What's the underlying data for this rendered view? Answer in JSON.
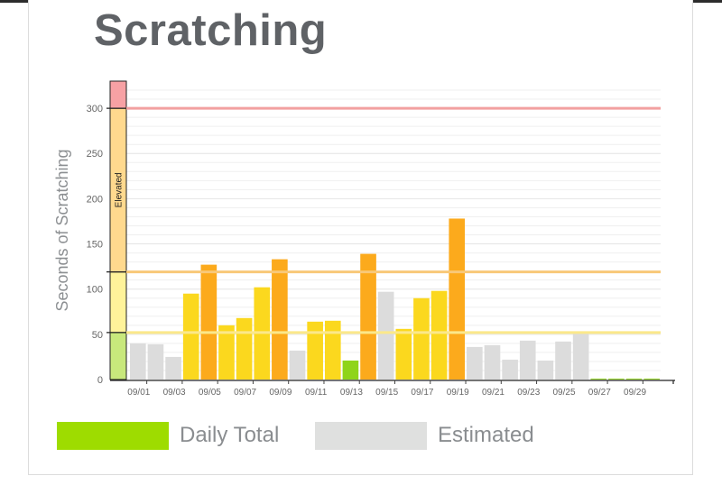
{
  "title": "Scratching",
  "chart_data": {
    "type": "bar",
    "title": "Scratching",
    "ylabel": "Seconds of Scratching",
    "xlabel": "",
    "ylim": [
      0,
      330
    ],
    "yticks": [
      0,
      50,
      100,
      150,
      200,
      250,
      300
    ],
    "grid": true,
    "categories": [
      "09/01",
      "09/02",
      "09/03",
      "09/04",
      "09/05",
      "09/06",
      "09/07",
      "09/08",
      "09/09",
      "09/10",
      "09/11",
      "09/12",
      "09/13",
      "09/14",
      "09/15",
      "09/16",
      "09/17",
      "09/18",
      "09/19",
      "09/20",
      "09/21",
      "09/22",
      "09/23",
      "09/24",
      "09/25",
      "09/26",
      "09/27",
      "09/28",
      "09/29",
      "09/30"
    ],
    "xtick_labels": [
      "09/01",
      "09/03",
      "09/05",
      "09/07",
      "09/09",
      "09/11",
      "09/13",
      "09/15",
      "09/17",
      "09/19",
      "09/21",
      "09/23",
      "09/25",
      "09/27",
      "09/29"
    ],
    "values": [
      40,
      39,
      25,
      95,
      127,
      60,
      68,
      102,
      133,
      32,
      64,
      65,
      21,
      139,
      97,
      56,
      90,
      98,
      178,
      36,
      38,
      22,
      43,
      21,
      42,
      53,
      1,
      1,
      1,
      1
    ],
    "bar_types": [
      "estimated",
      "estimated",
      "estimated",
      "yellow",
      "orange",
      "yellow",
      "yellow",
      "yellow",
      "orange",
      "estimated",
      "yellow",
      "yellow",
      "green",
      "orange",
      "estimated",
      "yellow",
      "yellow",
      "yellow",
      "orange",
      "estimated",
      "estimated",
      "estimated",
      "estimated",
      "estimated",
      "estimated",
      "estimated",
      "green",
      "green",
      "green",
      "green"
    ],
    "threshold_lines": [
      {
        "value": 52,
        "color": "#fbe88a"
      },
      {
        "value": 119,
        "color": "#f8c878"
      },
      {
        "value": 300,
        "color": "#f2a0a0"
      }
    ],
    "severity_bands": [
      {
        "from": 0,
        "to": 52,
        "color": "#c8e87c"
      },
      {
        "from": 52,
        "to": 119,
        "color": "#fff39a"
      },
      {
        "from": 119,
        "to": 300,
        "color": "#ffd98e"
      },
      {
        "from": 300,
        "to": 330,
        "color": "#f7a1a4"
      }
    ],
    "band_label": "Elevated",
    "colors": {
      "green": "#8fd41a",
      "yellow": "#fbd81e",
      "orange": "#fcaa1c",
      "estimated": "#dcdcdc"
    },
    "legend": [
      {
        "label": "Daily Total",
        "color": "#9edc00"
      },
      {
        "label": "Estimated",
        "color": "#dfe0df"
      }
    ]
  }
}
